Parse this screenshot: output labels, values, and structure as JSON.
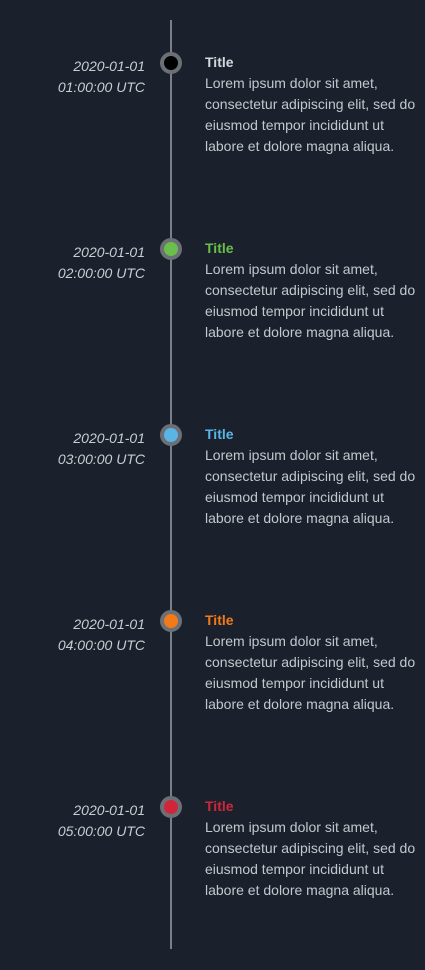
{
  "events": [
    {
      "date": "2020-01-01",
      "time": "01:00:00 UTC",
      "title": "Title",
      "text": "Lorem ipsum dolor sit amet, consectetur adipiscing elit, sed do eiusmod tempor incididunt ut labore et dolore magna aliqua.",
      "color": "#000000",
      "title_color": "#d4d7dc"
    },
    {
      "date": "2020-01-01",
      "time": "02:00:00 UTC",
      "title": "Title",
      "text": "Lorem ipsum dolor sit amet, consectetur adipiscing elit, sed do eiusmod tempor incididunt ut labore et dolore magna aliqua.",
      "color": "#6abf4b",
      "title_color": "#6abf4b"
    },
    {
      "date": "2020-01-01",
      "time": "03:00:00 UTC",
      "title": "Title",
      "text": "Lorem ipsum dolor sit amet, consectetur adipiscing elit, sed do eiusmod tempor incididunt ut labore et dolore magna aliqua.",
      "color": "#5ab4e6",
      "title_color": "#5ab4e6"
    },
    {
      "date": "2020-01-01",
      "time": "04:00:00 UTC",
      "title": "Title",
      "text": "Lorem ipsum dolor sit amet, consectetur adipiscing elit, sed do eiusmod tempor incididunt ut labore et dolore magna aliqua.",
      "color": "#f27a1a",
      "title_color": "#f27a1a"
    },
    {
      "date": "2020-01-01",
      "time": "05:00:00 UTC",
      "title": "Title",
      "text": "Lorem ipsum dolor sit amet, consectetur adipiscing elit, sed do eiusmod tempor incididunt ut labore et dolore magna aliqua.",
      "color": "#d1263a",
      "title_color": "#d1263a"
    }
  ]
}
